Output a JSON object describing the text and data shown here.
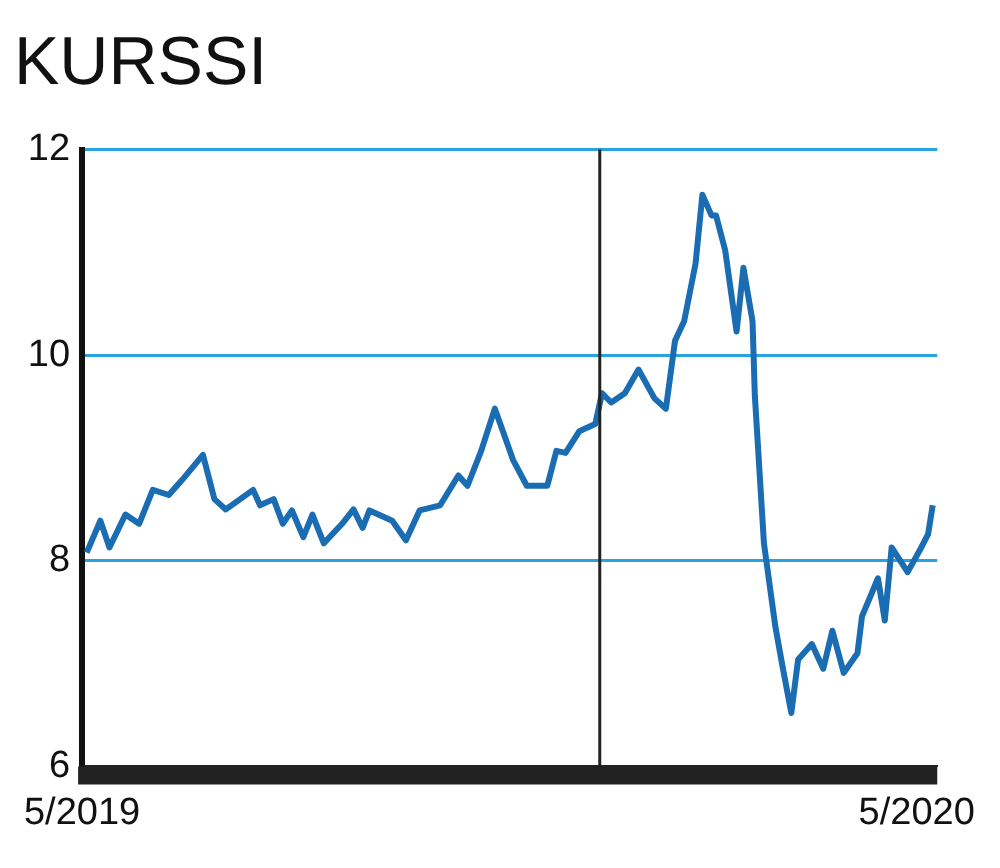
{
  "chart_data": {
    "type": "line",
    "title": "KURSSI",
    "x": [
      "2019-05-03",
      "2019-05-09",
      "2019-05-13",
      "2019-05-20",
      "2019-05-26",
      "2019-06-01",
      "2019-06-08",
      "2019-06-14",
      "2019-06-23",
      "2019-06-28",
      "2019-07-03",
      "2019-07-15",
      "2019-07-18",
      "2019-07-24",
      "2019-07-28",
      "2019-08-01",
      "2019-08-06",
      "2019-08-10",
      "2019-08-15",
      "2019-08-23",
      "2019-08-28",
      "2019-09-01",
      "2019-09-04",
      "2019-09-14",
      "2019-09-20",
      "2019-09-26",
      "2019-10-05",
      "2019-10-13",
      "2019-10-17",
      "2019-10-23",
      "2019-10-29",
      "2019-11-06",
      "2019-11-12",
      "2019-11-21",
      "2019-11-25",
      "2019-11-29",
      "2019-12-05",
      "2019-12-12",
      "2019-12-15",
      "2019-12-19",
      "2019-12-25",
      "2019-12-31",
      "2020-01-07",
      "2020-01-12",
      "2020-01-16",
      "2020-01-20",
      "2020-01-25",
      "2020-01-28",
      "2020-02-01",
      "2020-02-03",
      "2020-02-07",
      "2020-02-12",
      "2020-02-15",
      "2020-02-19",
      "2020-02-20",
      "2020-02-24",
      "2020-02-29",
      "2020-03-03",
      "2020-03-07",
      "2020-03-10",
      "2020-03-16",
      "2020-03-21",
      "2020-03-25",
      "2020-03-30",
      "2020-04-05",
      "2020-04-07",
      "2020-04-14",
      "2020-04-17",
      "2020-04-20",
      "2020-04-27",
      "2020-05-03",
      "2020-05-06",
      "2020-05-08"
    ],
    "series": [
      {
        "color": "#1a6db3",
        "values": [
          8.08,
          8.39,
          8.13,
          8.45,
          8.36,
          8.69,
          8.64,
          8.79,
          9.03,
          8.6,
          8.5,
          8.69,
          8.54,
          8.6,
          8.36,
          8.49,
          8.23,
          8.45,
          8.17,
          8.36,
          8.5,
          8.32,
          8.49,
          8.39,
          8.2,
          8.49,
          8.54,
          8.83,
          8.73,
          9.07,
          9.48,
          8.98,
          8.73,
          8.73,
          9.07,
          9.05,
          9.26,
          9.33,
          9.63,
          9.54,
          9.63,
          9.86,
          9.58,
          9.48,
          10.14,
          10.33,
          10.89,
          11.56,
          11.36,
          11.36,
          11.02,
          10.23,
          10.85,
          10.33,
          9.61,
          8.17,
          7.36,
          6.99,
          6.52,
          7.04,
          7.19,
          6.95,
          7.32,
          6.91,
          7.1,
          7.46,
          7.83,
          7.42,
          8.13,
          7.89,
          8.13,
          8.26,
          8.54
        ]
      }
    ],
    "xlim": [
      "2019-05-01",
      "2020-05-10"
    ],
    "xticks": [
      {
        "value": "2019-05-01",
        "label": "5/2019"
      },
      {
        "value": "2020-05-01",
        "label": "5/2020"
      }
    ],
    "ylim": [
      6,
      12
    ],
    "yticks": [
      6,
      8,
      10,
      12
    ],
    "grid": "y",
    "legend": false,
    "marker": "none",
    "line_style": "solid",
    "ref_lines": [
      {
        "axis": "x",
        "value": "2019-12-14",
        "color": "#222222"
      }
    ]
  }
}
